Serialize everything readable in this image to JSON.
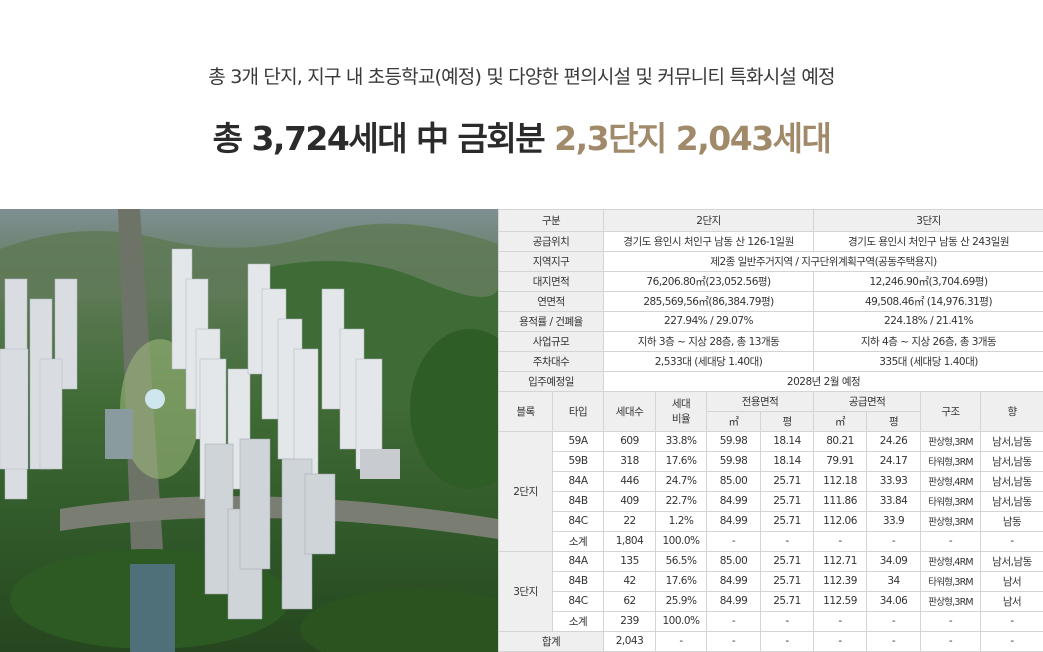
{
  "header": {
    "subtitle": "총 3개 단지, 지구 내 초등학교(예정) 및 다양한 편의시설 및 커뮤니티 특화시설 예정",
    "headline_main": "총 3,724세대 中 금회분 ",
    "headline_accent": "2,3단지 2,043세대"
  },
  "colors": {
    "accent": "#a08a6a",
    "header_cell": "#efefef",
    "border": "#d4d4d4"
  },
  "info_table": {
    "col_label": "구분",
    "col_2": "2단지",
    "col_3": "3단지",
    "rows": [
      {
        "label": "공급위치",
        "v2": "경기도 용인시 처인구 남동 산 126-1일원",
        "v3": "경기도 용인시 처인구 남동 산 243일원"
      },
      {
        "label": "지역지구",
        "merged": "제2종 일반주거지역 / 지구단위계획구역(공동주택용지)"
      },
      {
        "label": "대지면적",
        "v2": "76,206.80㎡(23,052.56평)",
        "v3": "12,246.90㎡(3,704.69평)"
      },
      {
        "label": "연면적",
        "v2": "285,569,56㎡(86,384.79평)",
        "v3": "49,508.46㎡ (14,976.31평)"
      },
      {
        "label": "용적률 / 건폐율",
        "v2": "227.94% / 29.07%",
        "v3": "224.18% / 21.41%"
      },
      {
        "label": "사업규모",
        "v2": "지하 3층 ~ 지상 28층, 총 13개동",
        "v3": "지하 4층 ~ 지상 26층, 총 3개동"
      },
      {
        "label": "주차대수",
        "v2": "2,533대 (세대당 1.40대)",
        "v3": "335대 (세대당 1.40대)"
      },
      {
        "label": "입주예정일",
        "merged": "2028년 2월 예정"
      }
    ]
  },
  "unit_table": {
    "headers": {
      "block": "블록",
      "type": "타입",
      "households": "세대수",
      "ratio_top": "세대",
      "ratio_bottom": "비율",
      "exclusive": "전용면적",
      "supply": "공급면적",
      "sqm": "㎡",
      "pyeong": "평",
      "structure": "구조",
      "direction": "향"
    },
    "block2": {
      "name": "2단지",
      "rows": [
        {
          "type": "59A",
          "hh": "609",
          "ratio": "33.8%",
          "ex_m2": "59.98",
          "ex_py": "18.14",
          "su_m2": "80.21",
          "su_py": "24.26",
          "structure": "판상형,3RM",
          "direction": "남서,남동"
        },
        {
          "type": "59B",
          "hh": "318",
          "ratio": "17.6%",
          "ex_m2": "59.98",
          "ex_py": "18.14",
          "su_m2": "79.91",
          "su_py": "24.17",
          "structure": "타워형,3RM",
          "direction": "남서,남동"
        },
        {
          "type": "84A",
          "hh": "446",
          "ratio": "24.7%",
          "ex_m2": "85.00",
          "ex_py": "25.71",
          "su_m2": "112.18",
          "su_py": "33.93",
          "structure": "판상형,4RM",
          "direction": "남서,남동"
        },
        {
          "type": "84B",
          "hh": "409",
          "ratio": "22.7%",
          "ex_m2": "84.99",
          "ex_py": "25.71",
          "su_m2": "111.86",
          "su_py": "33.84",
          "structure": "타워형,3RM",
          "direction": "남서,남동"
        },
        {
          "type": "84C",
          "hh": "22",
          "ratio": "1.2%",
          "ex_m2": "84.99",
          "ex_py": "25.71",
          "su_m2": "112.06",
          "su_py": "33.9",
          "structure": "판상형,3RM",
          "direction": "남동"
        },
        {
          "type": "소계",
          "hh": "1,804",
          "ratio": "100.0%",
          "ex_m2": "-",
          "ex_py": "-",
          "su_m2": "-",
          "su_py": "-",
          "structure": "-",
          "direction": "-"
        }
      ]
    },
    "block3": {
      "name": "3단지",
      "rows": [
        {
          "type": "84A",
          "hh": "135",
          "ratio": "56.5%",
          "ex_m2": "85.00",
          "ex_py": "25.71",
          "su_m2": "112.71",
          "su_py": "34.09",
          "structure": "판상형,4RM",
          "direction": "남서,남동"
        },
        {
          "type": "84B",
          "hh": "42",
          "ratio": "17.6%",
          "ex_m2": "84.99",
          "ex_py": "25.71",
          "su_m2": "112.39",
          "su_py": "34",
          "structure": "타워형,3RM",
          "direction": "남서"
        },
        {
          "type": "84C",
          "hh": "62",
          "ratio": "25.9%",
          "ex_m2": "84.99",
          "ex_py": "25.71",
          "su_m2": "112.59",
          "su_py": "34.06",
          "structure": "판상형,3RM",
          "direction": "남서"
        },
        {
          "type": "소계",
          "hh": "239",
          "ratio": "100.0%",
          "ex_m2": "-",
          "ex_py": "-",
          "su_m2": "-",
          "su_py": "-",
          "structure": "-",
          "direction": "-"
        }
      ]
    },
    "total": {
      "label": "합계",
      "hh": "2,043",
      "ratio": "-",
      "ex_m2": "-",
      "ex_py": "-",
      "su_m2": "-",
      "su_py": "-",
      "structure": "-",
      "direction": "-"
    }
  }
}
